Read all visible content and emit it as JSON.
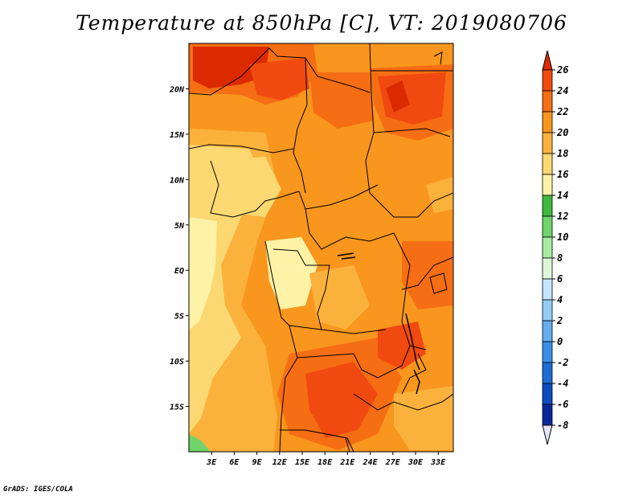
{
  "title": "Temperature at 850hPa [C], VT: 2019080706",
  "footer": "GrADS: IGES/COLA",
  "map": {
    "lat_range": [
      -20,
      25
    ],
    "lon_range": [
      0,
      35
    ],
    "lat_labels": [
      "20N",
      "15N",
      "10N",
      "5N",
      "EQ",
      "5S",
      "10S",
      "15S"
    ],
    "lat_values": [
      20,
      15,
      10,
      5,
      0,
      -5,
      -10,
      -15
    ],
    "lon_labels": [
      "3E",
      "6E",
      "9E",
      "12E",
      "15E",
      "18E",
      "21E",
      "24E",
      "27E",
      "30E",
      "33E"
    ],
    "lon_values": [
      3,
      6,
      9,
      12,
      15,
      18,
      21,
      24,
      27,
      30,
      33
    ]
  },
  "colorbar": {
    "levels": [
      "26",
      "24",
      "22",
      "20",
      "18",
      "16",
      "14",
      "12",
      "10",
      "8",
      "6",
      "4",
      "2",
      "0",
      "-2",
      "-4",
      "-6",
      "-8"
    ],
    "colors": [
      "#dc2a00",
      "#f04a10",
      "#f66e14",
      "#f8961e",
      "#fbb23c",
      "#fcd872",
      "#fdf2a6",
      "#3eb83e",
      "#6fd46a",
      "#a6eba1",
      "#ddf6d8",
      "#c6e4fb",
      "#94cdf6",
      "#64aef0",
      "#3b8ee8",
      "#1e6cd4",
      "#0c4cbf",
      "#08289a",
      "#041466"
    ],
    "top_color": "#dc2a00",
    "bottom_color": "#e6e6fa"
  },
  "field": {
    "description_colors": {
      "hot": "#dc2a00",
      "very_warm": "#f04a10",
      "warm": "#f66e14",
      "mild": "#f8961e",
      "cool": "#fbb23c",
      "cooler": "#fcd872",
      "coolest": "#fdf2a6",
      "green": "#6fd46a"
    }
  }
}
